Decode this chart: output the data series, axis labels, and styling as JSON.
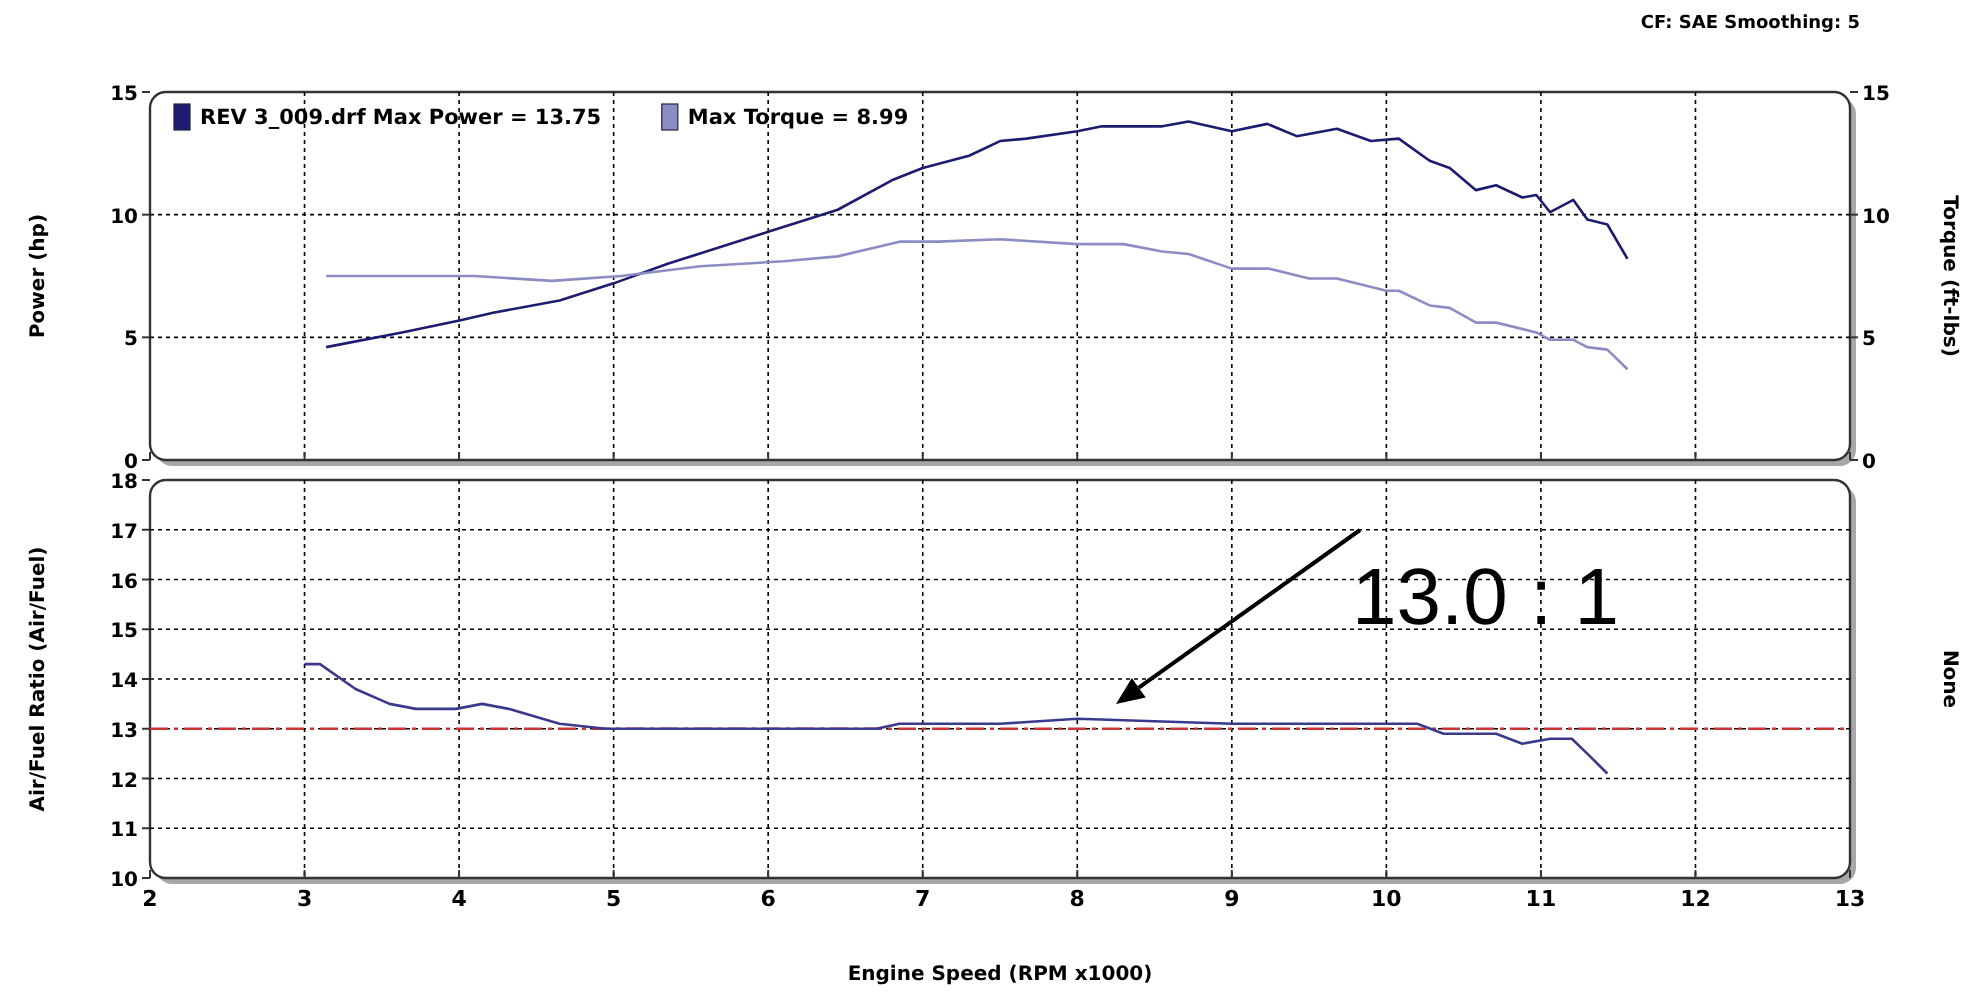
{
  "chart_data": [
    {
      "type": "line",
      "annotations": [
        "CF: SAE  Smoothing: 5"
      ],
      "ylabel": "Power (hp)",
      "y2label": "Torque (ft-lbs)",
      "xlim": [
        2,
        13
      ],
      "xticks": [
        2,
        3,
        4,
        5,
        6,
        7,
        8,
        9,
        10,
        11,
        12,
        13
      ],
      "ylim": [
        0,
        15
      ],
      "yticks": [
        0,
        5,
        10,
        15
      ],
      "y2lim": [
        0,
        15
      ],
      "y2ticks": [
        0,
        5,
        10,
        15
      ],
      "tick_labels": "y",
      "grid": true,
      "legend": "top left",
      "series": [
        {
          "name": "REV 3_009.drf Max Power = 13.75",
          "color": "#1c1c70",
          "x": [
            3.14,
            3.63,
            4.01,
            4.22,
            4.65,
            5.0,
            5.35,
            6.0,
            6.45,
            6.8,
            7.0,
            7.3,
            7.5,
            7.67,
            8.0,
            8.16,
            8.55,
            8.72,
            9.0,
            9.23,
            9.42,
            9.68,
            9.9,
            10.08,
            10.28,
            10.41,
            10.58,
            10.71,
            10.88,
            10.97,
            11.06,
            11.21,
            11.3,
            11.43,
            11.56
          ],
          "values": [
            4.6,
            5.2,
            5.7,
            6.0,
            6.5,
            7.2,
            8.0,
            9.3,
            10.2,
            11.4,
            11.9,
            12.4,
            13.0,
            13.1,
            13.4,
            13.6,
            13.6,
            13.8,
            13.4,
            13.7,
            13.2,
            13.5,
            13.0,
            13.1,
            12.2,
            11.9,
            11.0,
            11.2,
            10.7,
            10.8,
            10.1,
            10.6,
            9.8,
            9.6,
            8.2
          ]
        },
        {
          "name": "Max Torque = 8.99",
          "color": "#8c8cc4",
          "x": [
            3.14,
            4.1,
            4.6,
            5.05,
            5.56,
            6.1,
            6.45,
            6.85,
            7.1,
            7.5,
            8.0,
            8.3,
            8.55,
            8.72,
            9.0,
            9.24,
            9.5,
            9.68,
            10.0,
            10.08,
            10.28,
            10.41,
            10.58,
            10.71,
            10.97,
            11.06,
            11.21,
            11.3,
            11.43,
            11.56
          ],
          "values": [
            7.5,
            7.5,
            7.3,
            7.5,
            7.9,
            8.1,
            8.3,
            8.9,
            8.9,
            9.0,
            8.8,
            8.8,
            8.5,
            8.4,
            7.8,
            7.8,
            7.4,
            7.4,
            6.9,
            6.9,
            6.3,
            6.2,
            5.6,
            5.6,
            5.2,
            4.9,
            4.9,
            4.6,
            4.5,
            3.7
          ]
        }
      ]
    },
    {
      "type": "line",
      "xlabel": "Engine Speed (RPM x1000)",
      "ylabel": "Air/Fuel Ratio (Air/Fuel)",
      "y2label": "None",
      "xlim": [
        2,
        13
      ],
      "xticks": [
        2,
        3,
        4,
        5,
        6,
        7,
        8,
        9,
        10,
        11,
        12,
        13
      ],
      "ylim": [
        10,
        18
      ],
      "yticks": [
        10,
        11,
        12,
        13,
        14,
        15,
        16,
        17,
        18
      ],
      "grid": true,
      "ref_lines": [
        {
          "axis": "y",
          "value": 13,
          "color": "#cc3333",
          "line_style": "dashed"
        }
      ],
      "annotations": [
        "13.0 : 1"
      ],
      "series": [
        {
          "color": "#3a3a8c",
          "x": [
            3.0,
            3.1,
            3.33,
            3.55,
            3.72,
            3.98,
            4.15,
            4.32,
            4.65,
            4.95,
            5.4,
            6.0,
            6.45,
            6.7,
            6.85,
            7.5,
            8.0,
            9.0,
            10.0,
            10.2,
            10.37,
            10.71,
            10.88,
            11.06,
            11.2,
            11.3,
            11.43
          ],
          "values": [
            14.3,
            14.3,
            13.8,
            13.5,
            13.4,
            13.4,
            13.5,
            13.4,
            13.1,
            13.0,
            13.0,
            13.0,
            13.0,
            13.0,
            13.1,
            13.1,
            13.2,
            13.1,
            13.1,
            13.1,
            12.9,
            12.9,
            12.7,
            12.8,
            12.8,
            12.5,
            12.1
          ]
        }
      ]
    }
  ]
}
